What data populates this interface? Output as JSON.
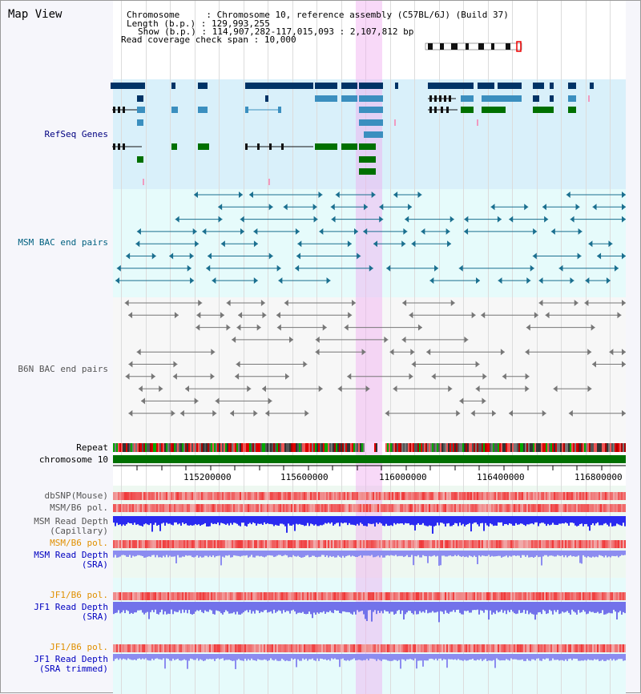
{
  "title": "Map View",
  "info": {
    "chromosome_key": "Chromosome",
    "chromosome_val": "Chromosome 10, reference assembly (C57BL/6J) (Build 37)",
    "length_key": "Length (b.p.)",
    "length_val": "129,993,255",
    "show_key": "Show (b.p.)",
    "show_val": "114,907,282-117,015,093 : 2,107,812 bp",
    "coverage_key": "Read coverage check span",
    "coverage_val": "10,000"
  },
  "tracks": {
    "refseq": "RefSeq Genes",
    "msm_bac": "MSM BAC end pairs",
    "b6n_bac": "B6N BAC end pairs",
    "repeat": "Repeat",
    "chromosome": "chromosome 10",
    "dbsnp": "dbSNP(Mouse)",
    "msm_b6_pol": "MSM/B6 pol.",
    "msm_depth_cap": "MSM Read Depth\n(Capillary)",
    "msm_b6_pol2": "MSM/B6 pol.",
    "msm_depth_sra": "MSM Read Depth\n(SRA)",
    "jf1_b6_pol": "JF1/B6 pol.",
    "jf1_depth_sra": "JF1 Read Depth\n(SRA)",
    "jf1_b6_pol2": "JF1/B6 pol.",
    "jf1_depth_trim": "JF1 Read Depth\n(SRA trimmed)"
  },
  "axis_ticks": [
    "115200000",
    "115600000",
    "116000000",
    "116400000",
    "116800000"
  ],
  "colors": {
    "refseq_label": "#000080",
    "msm_label": "#006080",
    "b6n_label": "#555555",
    "orange_label": "#e09000",
    "blue_label": "#0000c0",
    "chrom_bar": "#007000"
  }
}
